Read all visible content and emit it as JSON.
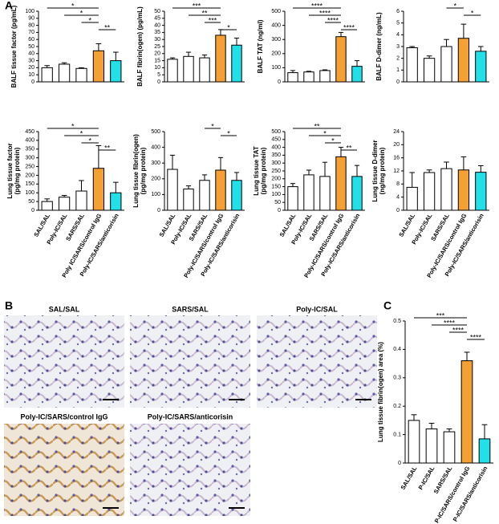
{
  "panels": [
    "A",
    "B",
    "C"
  ],
  "images": [
    "SAL/SAL",
    "SARS/SAL",
    "Poly-IC/SAL",
    "Poly-IC/SARS/control IgG",
    "Poly-IC/SARS/anticorisin"
  ],
  "chart_data": [
    {
      "type": "bar",
      "ylabel": [
        "BALF tissue factor (pg/mL)"
      ],
      "values": [
        20,
        25,
        19,
        44,
        30
      ],
      "errors": [
        3,
        2,
        1,
        10,
        12
      ],
      "colors": [
        "#ffffff",
        "#ffffff",
        "#ffffff",
        "#f5a033",
        "#22e0e8"
      ],
      "ylim": [
        0,
        100
      ],
      "yticks": [
        0,
        10,
        20,
        30,
        40,
        50,
        60,
        70,
        80,
        90,
        100
      ],
      "significance": [
        {
          "from": 0,
          "to": 3,
          "label": "*"
        },
        {
          "from": 1,
          "to": 3,
          "label": "*"
        },
        {
          "from": 2,
          "to": 3,
          "label": "*"
        },
        {
          "from": 3,
          "to": 4,
          "label": "**"
        }
      ]
    },
    {
      "type": "bar",
      "ylabel": [
        "BALF fibrin(ogen) (pg/mL)"
      ],
      "values": [
        16,
        18,
        17,
        33,
        26
      ],
      "errors": [
        1,
        3,
        2,
        4,
        5
      ],
      "colors": [
        "#ffffff",
        "#ffffff",
        "#ffffff",
        "#f5a033",
        "#22e0e8"
      ],
      "ylim": [
        0,
        50
      ],
      "yticks": [
        0,
        5,
        10,
        15,
        20,
        25,
        30,
        35,
        40,
        45,
        50
      ],
      "significance": [
        {
          "from": 0,
          "to": 3,
          "label": "***"
        },
        {
          "from": 1,
          "to": 3,
          "label": "**"
        },
        {
          "from": 2,
          "to": 3,
          "label": "***"
        },
        {
          "from": 3,
          "to": 4,
          "label": "*"
        }
      ]
    },
    {
      "type": "bar",
      "ylabel": [
        "BALF TAT (ng/ml)"
      ],
      "values": [
        65,
        70,
        80,
        320,
        110
      ],
      "errors": [
        15,
        5,
        5,
        30,
        40
      ],
      "colors": [
        "#ffffff",
        "#ffffff",
        "#ffffff",
        "#f5a033",
        "#22e0e8"
      ],
      "ylim": [
        0,
        500
      ],
      "yticks": [
        0,
        100,
        200,
        300,
        400,
        500
      ],
      "significance": [
        {
          "from": 0,
          "to": 3,
          "label": "****"
        },
        {
          "from": 1,
          "to": 3,
          "label": "****"
        },
        {
          "from": 2,
          "to": 3,
          "label": "****"
        },
        {
          "from": 3,
          "to": 4,
          "label": "****"
        }
      ]
    },
    {
      "type": "bar",
      "ylabel": [
        "BALF D-dimer (ng/mL)"
      ],
      "values": [
        2.9,
        2.0,
        3.0,
        3.7,
        2.6
      ],
      "errors": [
        0.1,
        0.2,
        0.6,
        1.2,
        0.4
      ],
      "colors": [
        "#ffffff",
        "#ffffff",
        "#ffffff",
        "#f5a033",
        "#22e0e8"
      ],
      "ylim": [
        0,
        6
      ],
      "yticks": [
        0,
        1,
        2,
        3,
        4,
        5,
        6
      ],
      "significance": [
        {
          "from": 2,
          "to": 3,
          "label": "*"
        },
        {
          "from": 3,
          "to": 4,
          "label": "*"
        }
      ]
    },
    {
      "type": "bar",
      "ylabel": [
        "Lung tissue factor",
        "(pg/mg protein)"
      ],
      "categories": [
        "SAL/SAL",
        "Poly-IC/SAL",
        "SARS/SAL",
        "Poly IC/SARS/control IgG",
        "Poly-IC/SARS/anticorisin"
      ],
      "values": [
        50,
        75,
        110,
        240,
        100
      ],
      "errors": [
        15,
        10,
        60,
        130,
        60
      ],
      "colors": [
        "#ffffff",
        "#ffffff",
        "#ffffff",
        "#f5a033",
        "#22e0e8"
      ],
      "ylim": [
        0,
        450
      ],
      "yticks": [
        0,
        50,
        100,
        150,
        200,
        250,
        300,
        350,
        400,
        450
      ],
      "significance": [
        {
          "from": 0,
          "to": 3,
          "label": "*"
        },
        {
          "from": 1,
          "to": 3,
          "label": "*"
        },
        {
          "from": 2,
          "to": 3,
          "label": "*"
        },
        {
          "from": 3,
          "to": 4,
          "label": "**"
        }
      ]
    },
    {
      "type": "bar",
      "ylabel": [
        "Lung tissue fibrin(ogen)",
        "(pg/mg protein)"
      ],
      "categories": [
        "SAL/SAL",
        "Poly-IC/SAL",
        "SARS/SAL",
        "Poly-IC/SARS/control IgG",
        "Poly-IC/SARS/anticorisin"
      ],
      "values": [
        260,
        135,
        190,
        255,
        190
      ],
      "errors": [
        90,
        20,
        35,
        80,
        50
      ],
      "colors": [
        "#ffffff",
        "#ffffff",
        "#ffffff",
        "#f5a033",
        "#22e0e8"
      ],
      "ylim": [
        0,
        500
      ],
      "yticks": [
        0,
        100,
        200,
        300,
        400,
        500
      ],
      "significance": [
        {
          "from": 2,
          "to": 3,
          "label": "*"
        },
        {
          "from": 3,
          "to": 4,
          "label": "*"
        }
      ]
    },
    {
      "type": "bar",
      "ylabel": [
        "Lung tissue TAT",
        "(pg/mg protein)"
      ],
      "categories": [
        "SAL/SAL",
        "Poly-IC/SAL",
        "SARS/SAL",
        "Poly-IC/SARS/control IgG",
        "Poly-IC/SARS/anticorisin"
      ],
      "values": [
        150,
        225,
        215,
        340,
        215
      ],
      "errors": [
        20,
        30,
        90,
        60,
        70
      ],
      "colors": [
        "#ffffff",
        "#ffffff",
        "#ffffff",
        "#f5a033",
        "#22e0e8"
      ],
      "ylim": [
        0,
        500
      ],
      "yticks": [
        0,
        50,
        100,
        150,
        200,
        250,
        300,
        350,
        400,
        450,
        500
      ],
      "significance": [
        {
          "from": 0,
          "to": 3,
          "label": "**"
        },
        {
          "from": 1,
          "to": 3,
          "label": "*"
        },
        {
          "from": 2,
          "to": 3,
          "label": "*"
        },
        {
          "from": 3,
          "to": 4,
          "label": "**"
        }
      ]
    },
    {
      "type": "bar",
      "ylabel": [
        "Lung tissue D-dimer",
        "(ng/mg protein)"
      ],
      "categories": [
        "SAL/SAL",
        "Poly-IC/SAL",
        "SARS/SAL",
        "Poly-IC/SARS/control IgG",
        "Poly-IC/SARS/anticorisin"
      ],
      "values": [
        7,
        11.5,
        12.7,
        12.3,
        11.6
      ],
      "errors": [
        4.5,
        0.8,
        2,
        4,
        2
      ],
      "colors": [
        "#ffffff",
        "#ffffff",
        "#ffffff",
        "#f5a033",
        "#22e0e8"
      ],
      "ylim": [
        0,
        24
      ],
      "yticks": [
        0,
        4,
        8,
        12,
        16,
        20,
        24
      ],
      "significance": []
    },
    {
      "type": "bar",
      "ylabel": [
        "Lung tissue fibrin(ogen) area (%)"
      ],
      "categories": [
        "SAL/SAL",
        "P-IC/SAL",
        "SARS/SAL",
        "P-IC/SARS/control IgG",
        "P-IC/SARS/anticorisin"
      ],
      "values": [
        0.15,
        0.12,
        0.11,
        0.36,
        0.085
      ],
      "errors": [
        0.02,
        0.02,
        0.01,
        0.03,
        0.05
      ],
      "colors": [
        "#ffffff",
        "#ffffff",
        "#ffffff",
        "#f5a033",
        "#22e0e8"
      ],
      "ylim": [
        0,
        0.5
      ],
      "yticks": [
        0,
        0.1,
        0.2,
        0.3,
        0.4,
        0.5
      ],
      "significance": [
        {
          "from": 0,
          "to": 3,
          "label": "***"
        },
        {
          "from": 1,
          "to": 3,
          "label": "****"
        },
        {
          "from": 2,
          "to": 3,
          "label": "****"
        },
        {
          "from": 3,
          "to": 4,
          "label": "****"
        }
      ]
    }
  ]
}
